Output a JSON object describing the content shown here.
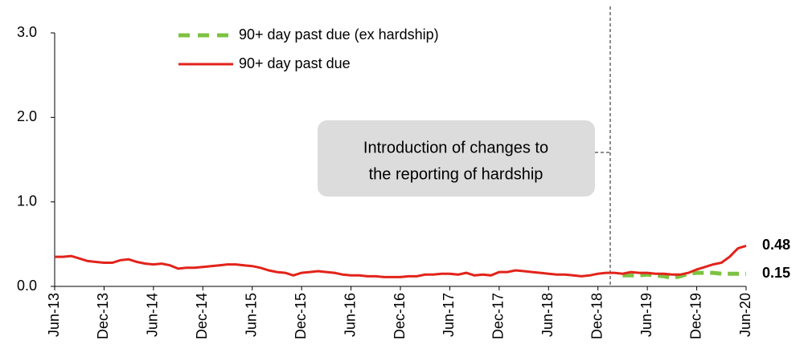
{
  "chart_data": {
    "type": "line",
    "categories": [
      "Jun-13",
      null,
      null,
      null,
      null,
      null,
      "Dec-13",
      null,
      null,
      null,
      null,
      null,
      "Jun-14",
      null,
      null,
      null,
      null,
      null,
      "Dec-14",
      null,
      null,
      null,
      null,
      null,
      "Jun-15",
      null,
      null,
      null,
      null,
      null,
      "Dec-15",
      null,
      null,
      null,
      null,
      null,
      "Jun-16",
      null,
      null,
      null,
      null,
      null,
      "Dec-16",
      null,
      null,
      null,
      null,
      null,
      "Jun-17",
      null,
      null,
      null,
      null,
      null,
      "Dec-17",
      null,
      null,
      null,
      null,
      null,
      "Jun-18",
      null,
      null,
      null,
      null,
      null,
      "Dec-18",
      null,
      null,
      null,
      null,
      null,
      "Jun-19",
      null,
      null,
      null,
      null,
      null,
      "Dec-19",
      null,
      null,
      null,
      null,
      null,
      "Jun-20"
    ],
    "series": [
      {
        "name": "90+ day past due (ex hardship)",
        "color": "#7dc242",
        "dashed": true,
        "end_label": "0.15",
        "values": [
          null,
          null,
          null,
          null,
          null,
          null,
          null,
          null,
          null,
          null,
          null,
          null,
          null,
          null,
          null,
          null,
          null,
          null,
          null,
          null,
          null,
          null,
          null,
          null,
          null,
          null,
          null,
          null,
          null,
          null,
          null,
          null,
          null,
          null,
          null,
          null,
          null,
          null,
          null,
          null,
          null,
          null,
          null,
          null,
          null,
          null,
          null,
          null,
          null,
          null,
          null,
          null,
          null,
          null,
          null,
          null,
          null,
          null,
          null,
          null,
          null,
          null,
          null,
          null,
          null,
          null,
          null,
          null,
          null,
          0.13,
          0.13,
          0.13,
          0.14,
          0.13,
          0.12,
          0.1,
          0.12,
          0.15,
          0.16,
          0.16,
          0.16,
          0.15,
          0.15,
          0.15,
          0.15
        ]
      },
      {
        "name": "90+ day past due",
        "color": "#e2231a",
        "dashed": false,
        "end_label": "0.48",
        "values": [
          0.35,
          0.35,
          0.36,
          0.33,
          0.3,
          0.29,
          0.28,
          0.28,
          0.31,
          0.32,
          0.29,
          0.27,
          0.26,
          0.27,
          0.25,
          0.21,
          0.22,
          0.22,
          0.23,
          0.24,
          0.25,
          0.26,
          0.26,
          0.25,
          0.24,
          0.22,
          0.19,
          0.17,
          0.16,
          0.13,
          0.16,
          0.17,
          0.18,
          0.17,
          0.16,
          0.14,
          0.13,
          0.13,
          0.12,
          0.12,
          0.11,
          0.11,
          0.11,
          0.12,
          0.12,
          0.14,
          0.14,
          0.15,
          0.15,
          0.14,
          0.16,
          0.13,
          0.14,
          0.13,
          0.17,
          0.17,
          0.19,
          0.18,
          0.17,
          0.16,
          0.15,
          0.14,
          0.14,
          0.13,
          0.12,
          0.13,
          0.15,
          0.16,
          0.16,
          0.15,
          0.17,
          0.16,
          0.16,
          0.15,
          0.15,
          0.14,
          0.14,
          0.16,
          0.2,
          0.23,
          0.26,
          0.28,
          0.35,
          0.45,
          0.48
        ]
      }
    ],
    "ylim": [
      0,
      3
    ],
    "yticks": [
      {
        "value": 0,
        "label": "0.0"
      },
      {
        "value": 1,
        "label": "1.0"
      },
      {
        "value": 2,
        "label": "2.0"
      },
      {
        "value": 3,
        "label": "3.0"
      }
    ],
    "annotation": [
      "Introduction of changes to",
      "the reporting of hardship"
    ]
  }
}
